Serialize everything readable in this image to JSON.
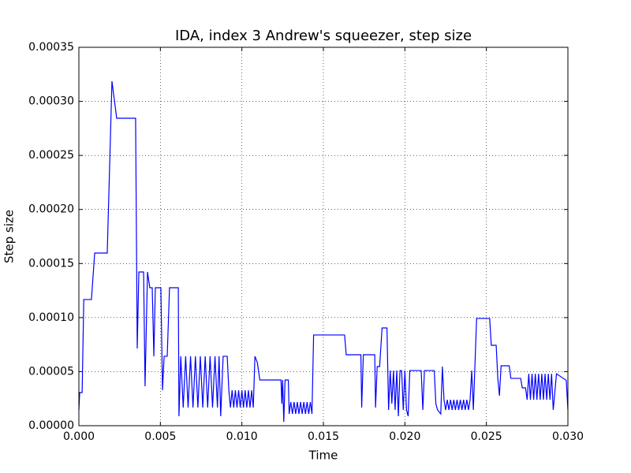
{
  "chart_data": {
    "type": "line",
    "title": "IDA, index 3 Andrew's squeezer, step size",
    "x_label": "Time",
    "y_label": "Step size",
    "color": "#0000ff",
    "grid": true,
    "xlim": [
      0,
      0.03
    ],
    "ylim": [
      0,
      0.00035
    ],
    "xticks": [
      {
        "value": 0,
        "label": "0.000"
      },
      {
        "value": 0.005,
        "label": "0.005"
      },
      {
        "value": 0.01,
        "label": "0.010"
      },
      {
        "value": 0.015,
        "label": "0.015"
      },
      {
        "value": 0.02,
        "label": "0.020"
      },
      {
        "value": 0.025,
        "label": "0.025"
      },
      {
        "value": 0.03,
        "label": "0.030"
      }
    ],
    "yticks": [
      {
        "value": 0,
        "label": "0.00000"
      },
      {
        "value": 5e-05,
        "label": "0.00005"
      },
      {
        "value": 0.0001,
        "label": "0.00010"
      },
      {
        "value": 0.00015,
        "label": "0.00015"
      },
      {
        "value": 0.0002,
        "label": "0.00020"
      },
      {
        "value": 0.00025,
        "label": "0.00025"
      },
      {
        "value": 0.0003,
        "label": "0.00030"
      },
      {
        "value": 0.00035,
        "label": "0.00035"
      }
    ],
    "x": [
      0,
      5e-05,
      0.0002,
      0.0003,
      0.00077,
      0.00097,
      0.00174,
      0.00203,
      0.00232,
      0.00348,
      0.00358,
      0.00368,
      0.00397,
      0.00406,
      0.00421,
      0.00435,
      0.0045,
      0.0046,
      0.00469,
      0.00503,
      0.00513,
      0.00523,
      0.00542,
      0.00556,
      0.0061,
      0.00614,
      0.00619,
      0.00625,
      0.0064,
      0.00655,
      0.0067,
      0.00685,
      0.007,
      0.00715,
      0.0073,
      0.00745,
      0.0076,
      0.00775,
      0.0079,
      0.00805,
      0.0082,
      0.00835,
      0.0085,
      0.0086,
      0.0087,
      0.00885,
      0.0091,
      0.0092,
      0.0093,
      0.0094,
      0.0095,
      0.0096,
      0.0097,
      0.0098,
      0.0099,
      0.01,
      0.0101,
      0.0102,
      0.0103,
      0.0104,
      0.0105,
      0.0106,
      0.0107,
      0.0108,
      0.01095,
      0.0111,
      0.0124,
      0.01245,
      0.0125,
      0.01257,
      0.01265,
      0.01285,
      0.0129,
      0.013,
      0.0131,
      0.0132,
      0.0133,
      0.0134,
      0.0135,
      0.0136,
      0.0137,
      0.0138,
      0.0139,
      0.014,
      0.0141,
      0.0142,
      0.0143,
      0.0144,
      0.0163,
      0.0164,
      0.0173,
      0.01735,
      0.01745,
      0.01815,
      0.0182,
      0.0183,
      0.01845,
      0.0186,
      0.0189,
      0.019,
      0.0191,
      0.0192,
      0.0193,
      0.0194,
      0.0195,
      0.0196,
      0.0197,
      0.0198,
      0.0199,
      0.02,
      0.0201,
      0.0202,
      0.0203,
      0.021,
      0.0211,
      0.0212,
      0.0218,
      0.0219,
      0.022,
      0.0222,
      0.0223,
      0.0224,
      0.0225,
      0.0226,
      0.0227,
      0.0228,
      0.0229,
      0.023,
      0.0231,
      0.0232,
      0.0233,
      0.0234,
      0.0235,
      0.0236,
      0.0237,
      0.0238,
      0.0239,
      0.024,
      0.0241,
      0.0242,
      0.0244,
      0.0252,
      0.0253,
      0.0256,
      0.0257,
      0.0258,
      0.0259,
      0.0264,
      0.0265,
      0.0271,
      0.0272,
      0.0274,
      0.0275,
      0.0276,
      0.0277,
      0.0278,
      0.0279,
      0.028,
      0.0281,
      0.0282,
      0.0283,
      0.0284,
      0.0285,
      0.0286,
      0.0287,
      0.0288,
      0.0289,
      0.029,
      0.0291,
      0.0293,
      0.0299,
      0.03
    ],
    "values": [
      1.46e-05,
      3.06e-05,
      3.06e-05,
      0.0001167,
      0.0001167,
      0.0001597,
      0.0001597,
      0.0003186,
      0.0002844,
      0.0002844,
      7.15e-05,
      0.0001422,
      0.0001422,
      3.65e-05,
      0.0001422,
      0.0001276,
      0.0001276,
      6.42e-05,
      0.0001276,
      0.0001276,
      3.28e-05,
      6.42e-05,
      6.42e-05,
      0.0001276,
      0.0001276,
      8.8e-06,
      3.28e-05,
      6.42e-05,
      1.68e-05,
      6.42e-05,
      1.68e-05,
      6.42e-05,
      1.68e-05,
      6.42e-05,
      1.68e-05,
      6.42e-05,
      1.68e-05,
      6.42e-05,
      1.68e-05,
      6.42e-05,
      1.68e-05,
      6.42e-05,
      1.68e-05,
      6.42e-05,
      8.8e-06,
      6.42e-05,
      6.42e-05,
      3.28e-05,
      1.68e-05,
      3.28e-05,
      1.68e-05,
      3.28e-05,
      1.68e-05,
      3.28e-05,
      1.68e-05,
      3.28e-05,
      1.68e-05,
      3.28e-05,
      1.68e-05,
      3.28e-05,
      1.68e-05,
      3.28e-05,
      1.68e-05,
      6.42e-05,
      5.83e-05,
      4.23e-05,
      4.23e-05,
      2.04e-05,
      4.23e-05,
      3.6e-06,
      4.23e-05,
      4.23e-05,
      1.09e-05,
      2.19e-05,
      1.09e-05,
      2.19e-05,
      1.09e-05,
      2.19e-05,
      1.09e-05,
      2.19e-05,
      1.09e-05,
      2.19e-05,
      1.09e-05,
      2.19e-05,
      1.09e-05,
      2.19e-05,
      1.09e-05,
      8.39e-05,
      8.39e-05,
      6.56e-05,
      6.56e-05,
      1.68e-05,
      6.56e-05,
      6.56e-05,
      1.68e-05,
      5.47e-05,
      5.47e-05,
      9.04e-05,
      9.04e-05,
      1.46e-05,
      5.1e-05,
      2.04e-05,
      5.1e-05,
      1.46e-05,
      5.1e-05,
      8.8e-06,
      5.1e-05,
      5.1e-05,
      1.46e-05,
      5.1e-05,
      1.46e-05,
      8.8e-06,
      5.1e-05,
      5.1e-05,
      1.46e-05,
      5.1e-05,
      5.1e-05,
      2.04e-05,
      1.46e-05,
      1.09e-05,
      5.47e-05,
      2.4e-05,
      1.46e-05,
      2.4e-05,
      1.46e-05,
      2.4e-05,
      1.46e-05,
      2.4e-05,
      1.46e-05,
      2.4e-05,
      1.46e-05,
      2.4e-05,
      1.46e-05,
      2.4e-05,
      1.46e-05,
      2.4e-05,
      1.46e-05,
      2.4e-05,
      5.1e-05,
      1.46e-05,
      9.92e-05,
      9.92e-05,
      7.44e-05,
      7.44e-05,
      4.38e-05,
      2.77e-05,
      5.54e-05,
      5.54e-05,
      4.38e-05,
      4.38e-05,
      3.5e-05,
      3.5e-05,
      2.4e-05,
      4.8e-05,
      2.4e-05,
      4.8e-05,
      2.4e-05,
      4.8e-05,
      2.4e-05,
      4.8e-05,
      2.4e-05,
      4.8e-05,
      2.4e-05,
      4.8e-05,
      2.4e-05,
      4.8e-05,
      2.4e-05,
      4.8e-05,
      1.46e-05,
      4.8e-05,
      4.2e-05,
      1.46e-05
    ]
  }
}
